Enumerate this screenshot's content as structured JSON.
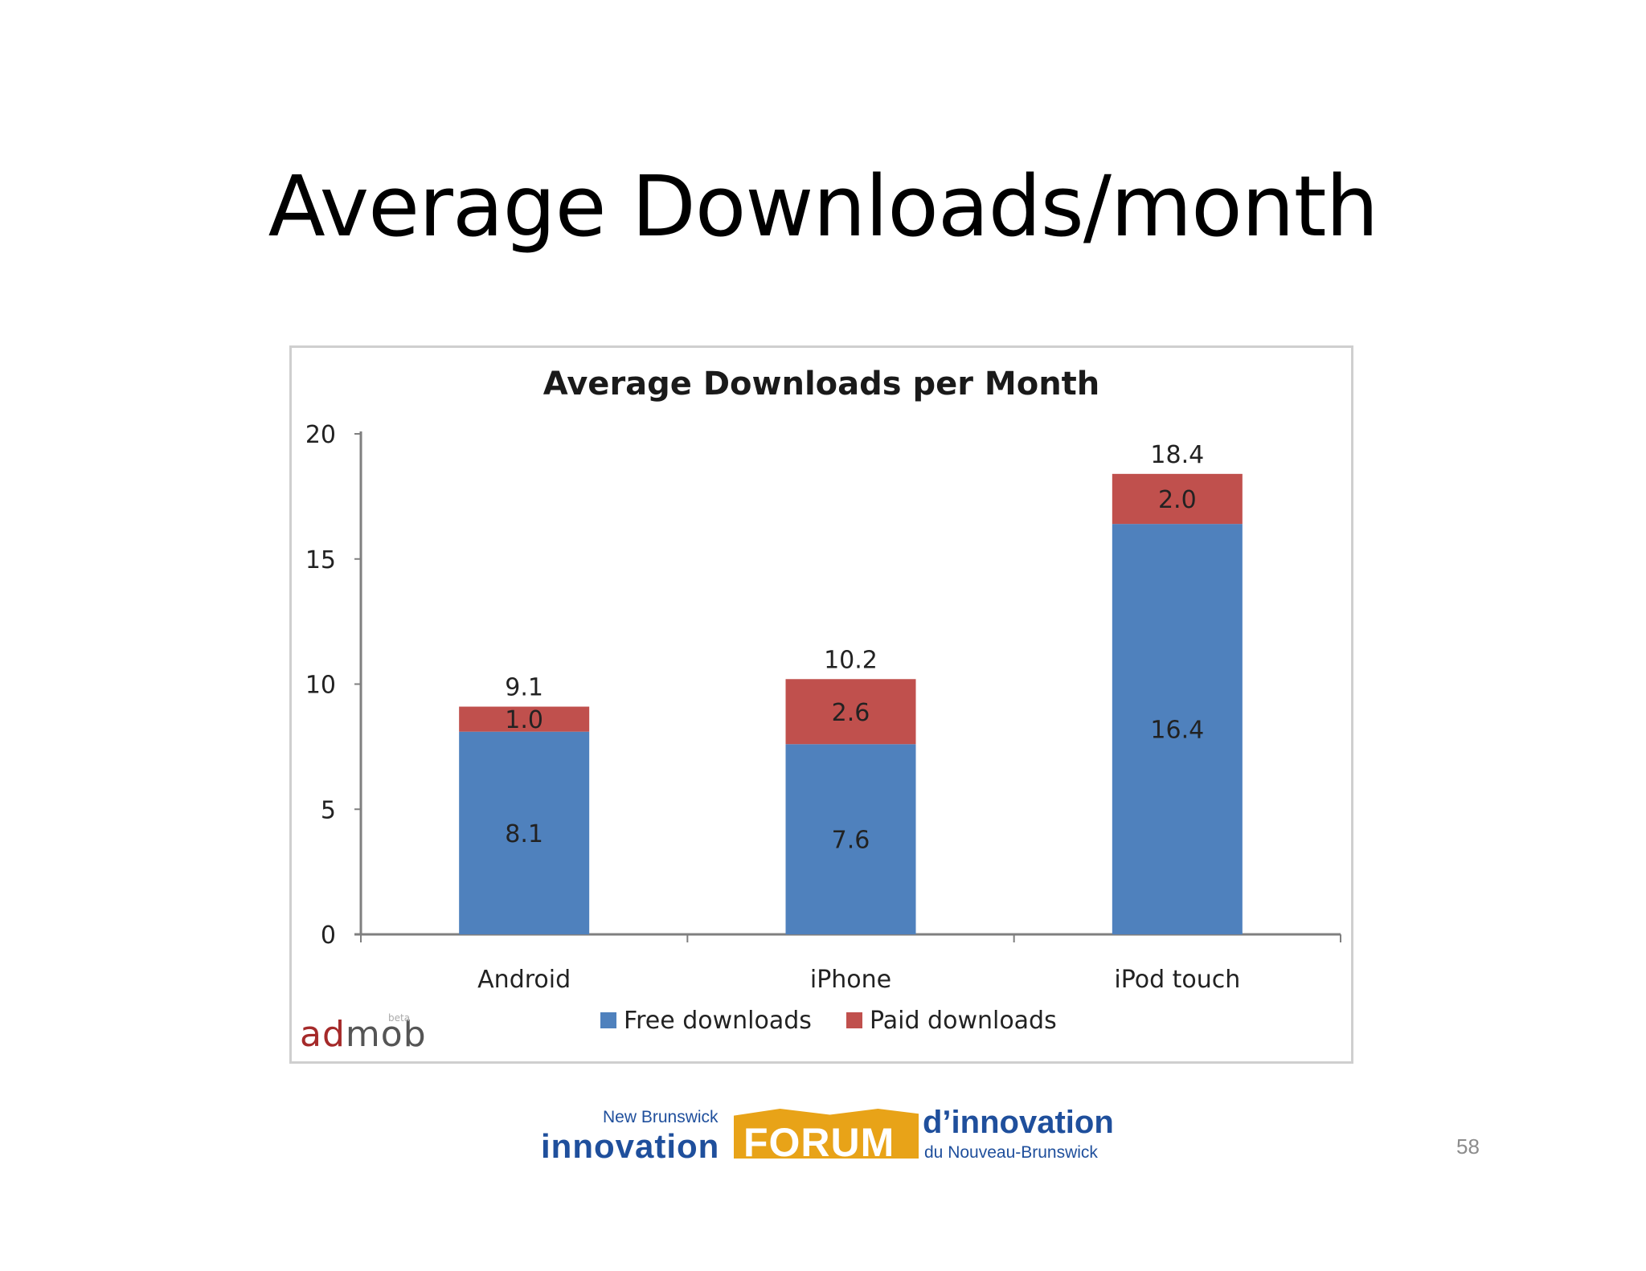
{
  "slide": {
    "title": "Average Downloads/month",
    "page_number": "58"
  },
  "chart_data": {
    "type": "bar",
    "stacked": true,
    "title": "Average Downloads per Month",
    "categories": [
      "Android",
      "iPhone",
      "iPod touch"
    ],
    "series": [
      {
        "name": "Free downloads",
        "values": [
          8.1,
          7.6,
          16.4
        ],
        "labels": [
          "8.1",
          "7.6",
          "16.4"
        ],
        "color": "#4f81bd"
      },
      {
        "name": "Paid downloads",
        "values": [
          1.0,
          2.6,
          2.0
        ],
        "labels": [
          "1.0",
          "2.6",
          "2.0"
        ],
        "color": "#c0504d"
      }
    ],
    "totals": [
      9.1,
      10.2,
      18.4
    ],
    "total_labels": [
      "9.1",
      "10.2",
      "18.4"
    ],
    "yticks": [
      0,
      5,
      10,
      15,
      20
    ],
    "ylim": [
      0,
      20
    ],
    "xlabel": "",
    "ylabel": "",
    "legend_position": "bottom",
    "grid": false
  },
  "logos": {
    "admob": {
      "text_red": "ad",
      "text_gray": "mob",
      "mark": "beta"
    },
    "footer": {
      "en_top": "New Brunswick",
      "en_main": "innovation",
      "forum": "FORUM",
      "fr_main": "d’innovation",
      "fr_sub": "du Nouveau-Brunswick"
    }
  }
}
